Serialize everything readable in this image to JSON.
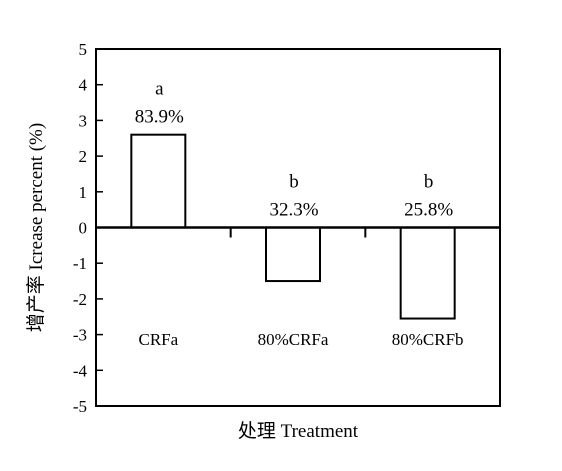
{
  "chart_data": {
    "type": "bar",
    "categories": [
      "CRFa",
      "80%CRFa",
      "80%CRFb"
    ],
    "values": [
      2.6,
      -1.5,
      -2.55
    ],
    "letters": [
      "a",
      "b",
      "b"
    ],
    "percent_labels": [
      "83.9%",
      "32.3%",
      "25.8%"
    ],
    "xlabel": "处理 Treatment",
    "ylabel": "增产率 Icrease percent (%)",
    "ylim": [
      -5,
      5
    ],
    "yticks": [
      5,
      4,
      3,
      2,
      1,
      0,
      -1,
      -2,
      -3,
      -4,
      -5
    ],
    "grid": false,
    "legend": "none",
    "bar_fill": "#ffffff",
    "bar_stroke": "#000000"
  }
}
